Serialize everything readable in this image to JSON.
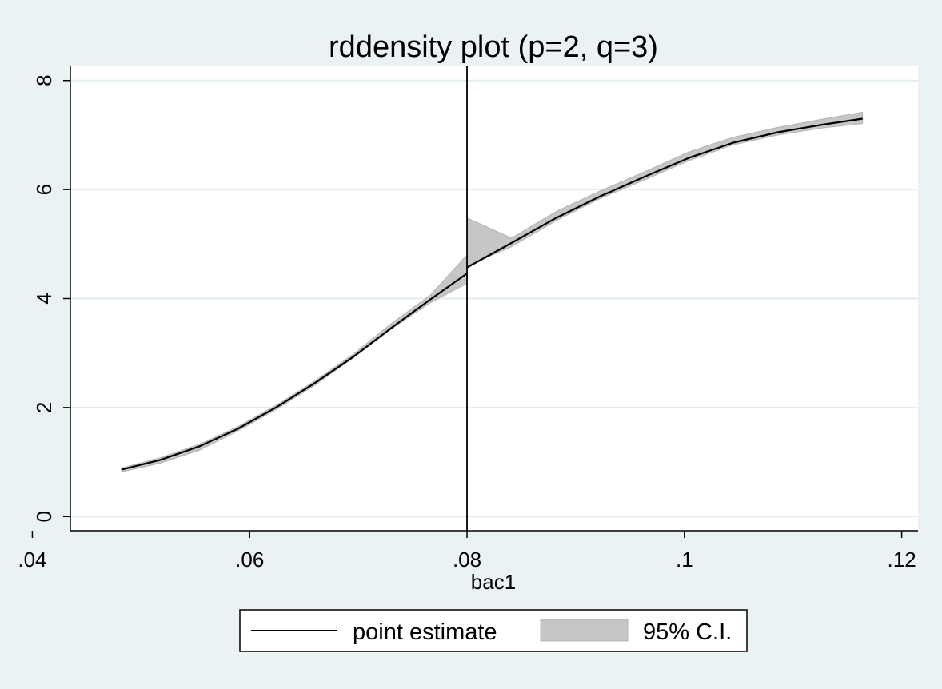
{
  "chart_data": {
    "type": "line",
    "title": "rddensity plot (p=2, q=3)",
    "xlabel": "bac1",
    "ylabel": "",
    "xlim": [
      0.0435,
      0.1215
    ],
    "ylim": [
      -0.26,
      8.26
    ],
    "x_ticks": [
      0.04,
      0.06,
      0.08,
      0.1,
      0.12
    ],
    "x_tick_labels": [
      ".04",
      ".06",
      ".08",
      ".1",
      ".12"
    ],
    "y_ticks": [
      0,
      2,
      4,
      6,
      8
    ],
    "y_tick_labels": [
      "0",
      "2",
      "4",
      "6",
      "8"
    ],
    "grid": "horizontal",
    "cutoff": 0.08,
    "legend_position": "bottom",
    "legend": [
      {
        "label": "point estimate",
        "kind": "line"
      },
      {
        "label": "95% C.I.",
        "kind": "band"
      }
    ],
    "series": [
      {
        "name": "point estimate",
        "segment": "left",
        "x": [
          0.0482,
          0.0518,
          0.0554,
          0.0589,
          0.0625,
          0.066,
          0.0696,
          0.0731,
          0.0766,
          0.08
        ],
        "y": [
          0.86,
          1.04,
          1.29,
          1.61,
          2.01,
          2.45,
          2.94,
          3.47,
          3.98,
          4.46
        ]
      },
      {
        "name": "point estimate",
        "segment": "right",
        "x": [
          0.08,
          0.0841,
          0.0882,
          0.0923,
          0.0964,
          0.1004,
          0.1045,
          0.1086,
          0.1127,
          0.1164
        ],
        "y": [
          4.57,
          5.02,
          5.48,
          5.88,
          6.24,
          6.58,
          6.86,
          7.05,
          7.19,
          7.3
        ]
      }
    ],
    "ci_bands": [
      {
        "name": "95% C.I.",
        "segment": "left",
        "x": [
          0.0482,
          0.0518,
          0.0554,
          0.0589,
          0.0625,
          0.066,
          0.0696,
          0.0731,
          0.0766,
          0.08
        ],
        "lower": [
          0.82,
          0.98,
          1.22,
          1.57,
          1.97,
          2.41,
          2.92,
          3.45,
          3.92,
          4.28
        ],
        "upper": [
          0.89,
          1.08,
          1.33,
          1.65,
          2.05,
          2.49,
          2.99,
          3.55,
          4.06,
          4.8
        ]
      },
      {
        "name": "95% C.I.",
        "segment": "right",
        "x": [
          0.08,
          0.0841,
          0.0882,
          0.0923,
          0.0964,
          0.1004,
          0.1045,
          0.1086,
          0.1127,
          0.1164
        ],
        "lower": [
          4.6,
          4.95,
          5.43,
          5.84,
          6.18,
          6.53,
          6.82,
          7.0,
          7.13,
          7.21
        ],
        "upper": [
          5.48,
          5.11,
          5.6,
          5.98,
          6.33,
          6.69,
          6.96,
          7.14,
          7.29,
          7.42
        ]
      }
    ]
  },
  "colors": {
    "background": "#eaf2f3",
    "plot_background": "#ffffff",
    "grid": "#e4eeef",
    "line": "#000000",
    "ci_fill": "#c6c6c6",
    "ci_edge": "#b4b4b4"
  }
}
